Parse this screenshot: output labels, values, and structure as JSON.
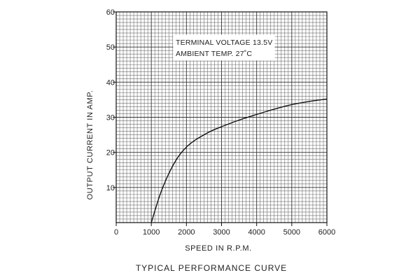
{
  "chart_data": {
    "type": "line",
    "title": "TYPICAL PERFORMANCE CURVE",
    "xlabel": "SPEED IN R.P.M.",
    "ylabel": "OUTPUT CURRENT IN AMP.",
    "xlim": [
      0,
      6000
    ],
    "ylim": [
      0,
      60
    ],
    "grid": true,
    "x_ticks": [
      "0",
      "1000",
      "2000",
      "3000",
      "4000",
      "5000",
      "6000"
    ],
    "y_ticks": [
      "10",
      "20",
      "30",
      "40",
      "50",
      "60"
    ],
    "annotations": [
      "TERMINAL VOLTAGE 13.5V",
      "AMBIENT TEMP. 27˚C"
    ],
    "series": [
      {
        "x": [
          1000,
          1250,
          1500,
          1750,
          2000,
          2250,
          2500,
          2750,
          3000,
          3500,
          4000,
          4500,
          5000,
          5500,
          6000
        ],
        "y": [
          0,
          8,
          14,
          18.5,
          21.5,
          23.5,
          25,
          26.3,
          27.3,
          29.2,
          30.8,
          32.3,
          33.6,
          34.5,
          35.2
        ]
      }
    ]
  }
}
